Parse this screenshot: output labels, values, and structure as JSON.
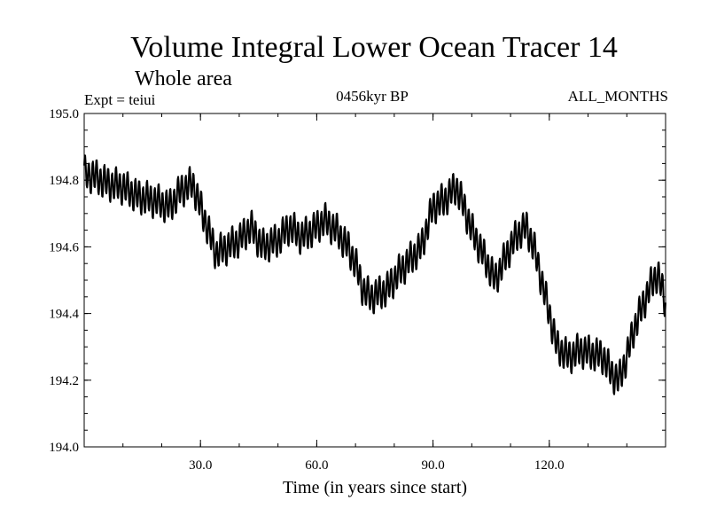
{
  "chart_data": {
    "type": "line",
    "title": "Volume Integral Lower Ocean Tracer 14",
    "subtitle": "Whole area",
    "experiment": "Expt = teiui",
    "period": "0456kyr BP",
    "months": "ALL_MONTHS",
    "xlabel": "Time (in years since start)",
    "ylabel": "",
    "xlim": [
      0,
      150
    ],
    "ylim": [
      194.0,
      195.0
    ],
    "xticks": [
      30,
      60,
      90,
      120
    ],
    "xtick_labels": [
      "30.0",
      "60.0",
      "90.0",
      "120.0"
    ],
    "yticks": [
      194.0,
      194.2,
      194.4,
      194.6,
      194.8,
      195.0
    ],
    "ytick_labels": [
      "194.0",
      "194.2",
      "194.4",
      "194.6",
      "194.8",
      "195.0"
    ],
    "grid": false,
    "line_color": "#000000",
    "seasonal_amplitude": 0.045,
    "series": [
      {
        "name": "Lower Ocean Tracer 14",
        "trend_x": [
          0,
          3,
          6,
          10,
          14,
          18,
          22,
          25,
          28,
          30,
          32,
          34,
          37,
          40,
          43,
          46,
          50,
          53,
          56,
          59,
          62,
          65,
          68,
          70,
          72,
          74,
          76,
          78,
          81,
          84,
          87,
          90,
          93,
          96,
          98,
          100,
          102,
          104,
          106,
          108,
          110,
          112,
          114,
          116,
          118,
          120,
          122,
          125,
          128,
          131,
          134,
          136,
          138,
          140,
          142,
          144,
          146,
          148,
          150
        ],
        "trend_y": [
          194.82,
          194.81,
          194.79,
          194.78,
          194.75,
          194.74,
          194.72,
          194.77,
          194.79,
          194.72,
          194.65,
          194.58,
          194.6,
          194.62,
          194.66,
          194.6,
          194.62,
          194.66,
          194.63,
          194.65,
          194.68,
          194.65,
          194.6,
          194.55,
          194.47,
          194.45,
          194.46,
          194.47,
          194.52,
          194.56,
          194.6,
          194.72,
          194.74,
          194.78,
          194.72,
          194.65,
          194.6,
          194.55,
          194.5,
          194.55,
          194.6,
          194.64,
          194.66,
          194.6,
          194.5,
          194.4,
          194.3,
          194.27,
          194.29,
          194.28,
          194.27,
          194.22,
          194.2,
          194.27,
          194.36,
          194.42,
          194.48,
          194.52,
          194.43
        ]
      }
    ]
  }
}
